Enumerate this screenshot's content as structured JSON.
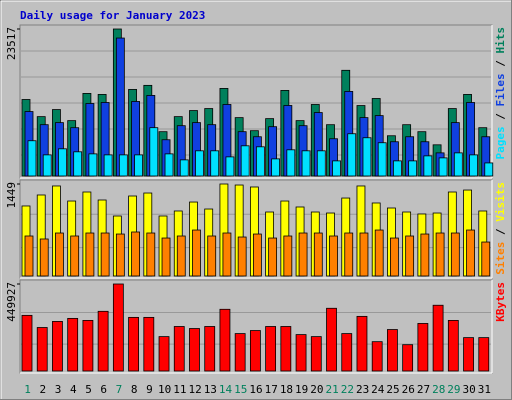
{
  "chart_data": {
    "type": "bar",
    "title": "Daily usage for January 2023",
    "categories": [
      "1",
      "2",
      "3",
      "4",
      "5",
      "6",
      "7",
      "8",
      "9",
      "10",
      "11",
      "12",
      "13",
      "14",
      "15",
      "16",
      "17",
      "18",
      "19",
      "20",
      "21",
      "22",
      "23",
      "24",
      "25",
      "26",
      "27",
      "28",
      "29",
      "30",
      "31"
    ],
    "category_colors": [
      "#00805c",
      "#000000",
      "#000000",
      "#000000",
      "#000000",
      "#000000",
      "#00805c",
      "#000000",
      "#000000",
      "#000000",
      "#000000",
      "#000000",
      "#000000",
      "#00805c",
      "#00805c",
      "#000000",
      "#000000",
      "#000000",
      "#000000",
      "#000000",
      "#00805c",
      "#00805c",
      "#000000",
      "#000000",
      "#000000",
      "#000000",
      "#000000",
      "#00805c",
      "#00805c",
      "#000000",
      "#000000"
    ],
    "legend_separator": " / ",
    "panels": [
      {
        "ylim": [
          0,
          23517
        ],
        "yticks": [
          23517
        ],
        "series": [
          {
            "name": "Hits",
            "color": "#00805c",
            "values": [
              12240,
              9500,
              10630,
              8860,
              13210,
              13050,
              23517,
              13850,
              14500,
              7090,
              9500,
              10470,
              10790,
              14010,
              9340,
              7250,
              9180,
              13690,
              8860,
              11440,
              8210,
              16910,
              11270,
              12400,
              6440,
              8210,
              7090,
              4990,
              10790,
              13050,
              7730
            ]
          },
          {
            "name": "Files",
            "color": "#1040e0",
            "values": [
              10310,
              8210,
              8540,
              7730,
              11600,
              11760,
              22070,
              11920,
              12890,
              5800,
              8050,
              8540,
              8210,
              11440,
              7090,
              6280,
              7890,
              11280,
              8050,
              10150,
              5960,
              13530,
              9340,
              9660,
              5480,
              6280,
              5480,
              3700,
              8540,
              11760,
              6280
            ]
          },
          {
            "name": "Pages",
            "color": "#00e0ff",
            "values": [
              5640,
              3380,
              4350,
              3870,
              3540,
              3380,
              3380,
              3380,
              7730,
              3540,
              2580,
              4030,
              4030,
              3060,
              4830,
              4670,
              2740,
              4190,
              4030,
              4030,
              2420,
              6760,
              6120,
              5320,
              2420,
              2420,
              3220,
              2900,
              3700,
              3380,
              2090
            ]
          }
        ]
      },
      {
        "ylim": [
          0,
          1449
        ],
        "yticks": [
          1449
        ],
        "series": [
          {
            "name": "Visits",
            "color": "#ffff00",
            "values": [
              1103,
              1276,
              1418,
              1181,
              1323,
              1197,
              945,
              1260,
              1307,
              945,
              1024,
              1165,
              1055,
              1449,
              1433,
              1402,
              1008,
              1181,
              1087,
              1008,
              992,
              1228,
              1418,
              1150,
              1071,
              1008,
              977,
              992,
              1323,
              1354,
              1024
            ]
          },
          {
            "name": "Sites",
            "color": "#ff8000",
            "values": [
              630,
              583,
              677,
              630,
              677,
              677,
              661,
              693,
              677,
              598,
              630,
              724,
              630,
              677,
              614,
              661,
              598,
              630,
              677,
              677,
              630,
              677,
              677,
              724,
              598,
              630,
              661,
              677,
              677,
              724,
              535
            ]
          }
        ]
      },
      {
        "ylim": [
          0,
          449927
        ],
        "yticks": [
          449927
        ],
        "series": [
          {
            "name": "KBytes",
            "color": "#ff0000",
            "values": [
              287750,
              224970,
              256360,
              272050,
              261590,
              308670,
              449927,
              277280,
              277280,
              177880,
              230200,
              219740,
              230200,
              319130,
              193570,
              209270,
              230200,
              230200,
              188340,
              177880,
              324360,
              193570,
              282510,
              151720,
              214500,
              136020,
              245890,
              340060,
              261590,
              172650,
              172650
            ]
          }
        ]
      }
    ]
  }
}
